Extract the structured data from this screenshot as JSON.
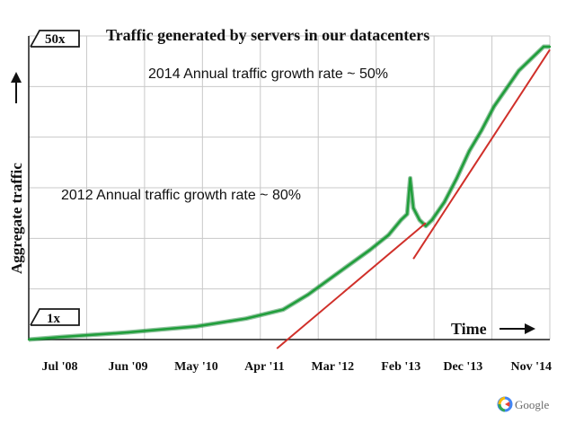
{
  "chart_data": {
    "type": "line",
    "title": "Traffic generated by servers in our datacenters",
    "ylabel": "Aggregate traffic",
    "xlabel": "Time",
    "ylim_labels": {
      "bottom": "1x",
      "top": "50x"
    },
    "x_ticks": [
      "Jul '08",
      "Jun '09",
      "May '10",
      "Apr '11",
      "Mar '12",
      "Feb '13",
      "Dec '13",
      "Nov '14"
    ],
    "x_tick_months": [
      0,
      11,
      22,
      33,
      44,
      55,
      65,
      76
    ],
    "x_range_months": [
      -5,
      79
    ],
    "y_range": [
      1,
      50
    ],
    "series": [
      {
        "name": "Aggregate traffic",
        "color": "#1f9e3a",
        "x_months": [
          -5,
          0,
          11,
          22,
          30,
          36,
          40,
          44,
          50,
          53,
          55,
          56,
          56.5,
          57,
          58,
          59,
          60,
          62,
          64,
          66,
          68,
          70,
          72,
          74,
          76,
          78,
          79
        ],
        "values": [
          1,
          1.4,
          2.2,
          3.2,
          4.5,
          6,
          8.5,
          11.5,
          16,
          18.5,
          21,
          22,
          28,
          23,
          21,
          20,
          21,
          24,
          28,
          32.5,
          36,
          40,
          43,
          46,
          48,
          50,
          50
        ]
      }
    ],
    "trend_lines": [
      {
        "name": "2012 trend",
        "color": "#d0302a",
        "x_months": [
          35,
          59
        ],
        "values": [
          -0.5,
          20.5
        ]
      },
      {
        "name": "2014 trend",
        "color": "#d0302a",
        "x_months": [
          57,
          79
        ],
        "values": [
          14.5,
          49.5
        ]
      }
    ],
    "annotations": [
      {
        "text": "2014 Annual traffic growth rate ~ 50%"
      },
      {
        "text": "2012 Annual traffic growth rate ~ 80%"
      }
    ],
    "colors": {
      "grid": "#c8c8c8",
      "axis": "#1a1a1a",
      "series": "#1f9e3a",
      "trend": "#d0302a"
    }
  },
  "branding": {
    "logo_text": "Google"
  }
}
